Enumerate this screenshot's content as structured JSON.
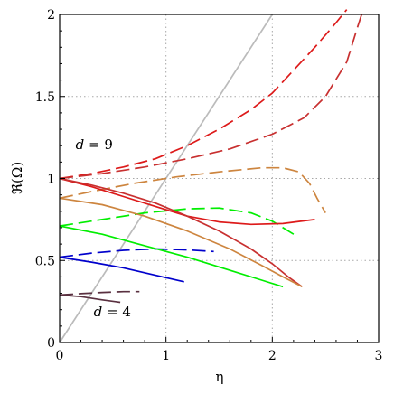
{
  "chart_data": {
    "type": "line",
    "xlabel": "η",
    "ylabel": "ℜ(Ω)",
    "xlim": [
      0,
      3
    ],
    "ylim": [
      0,
      2
    ],
    "x_ticks": [
      0,
      1,
      2,
      3
    ],
    "y_ticks": [
      0,
      0.5,
      1,
      1.5,
      2
    ],
    "x_tick_labels": [
      "0",
      "1",
      "2",
      "3"
    ],
    "y_tick_labels": [
      "0",
      "0.5",
      "1",
      "1.5",
      "2"
    ],
    "grid": true,
    "annotations": [
      {
        "var": "d",
        "text": " = 9",
        "x": 0.15,
        "y": 1.18
      },
      {
        "var": "d",
        "text": " = 4",
        "x": 0.32,
        "y": 0.16
      }
    ],
    "series": [
      {
        "color": "#bbbbbb",
        "dash": "solid",
        "points": [
          [
            0.0,
            0.0
          ],
          [
            2.0,
            2.0
          ]
        ]
      },
      {
        "color": "#dd1a1a",
        "dash": "long",
        "points": [
          [
            0.0,
            1.0
          ],
          [
            0.3,
            1.03
          ],
          [
            0.6,
            1.07
          ],
          [
            0.9,
            1.12
          ],
          [
            1.2,
            1.2
          ],
          [
            1.5,
            1.3
          ],
          [
            1.8,
            1.42
          ],
          [
            2.0,
            1.52
          ],
          [
            2.2,
            1.66
          ],
          [
            2.4,
            1.8
          ],
          [
            2.6,
            1.95
          ],
          [
            2.7,
            2.03
          ]
        ]
      },
      {
        "color": "#c83030",
        "dash": "long",
        "points": [
          [
            0.0,
            1.0
          ],
          [
            0.4,
            1.03
          ],
          [
            0.8,
            1.07
          ],
          [
            1.2,
            1.12
          ],
          [
            1.6,
            1.18
          ],
          [
            2.0,
            1.27
          ],
          [
            2.3,
            1.37
          ],
          [
            2.5,
            1.5
          ],
          [
            2.7,
            1.71
          ],
          [
            2.8,
            1.92
          ],
          [
            2.85,
            2.02
          ]
        ]
      },
      {
        "color": "#cd853f",
        "dash": "long",
        "points": [
          [
            0.0,
            0.88
          ],
          [
            0.3,
            0.92
          ],
          [
            0.7,
            0.97
          ],
          [
            1.1,
            1.01
          ],
          [
            1.5,
            1.04
          ],
          [
            1.9,
            1.065
          ],
          [
            2.1,
            1.065
          ],
          [
            2.25,
            1.04
          ],
          [
            2.35,
            0.97
          ],
          [
            2.42,
            0.88
          ],
          [
            2.5,
            0.79
          ]
        ]
      },
      {
        "color": "#00ee00",
        "dash": "long",
        "points": [
          [
            0.0,
            0.71
          ],
          [
            0.4,
            0.75
          ],
          [
            0.8,
            0.79
          ],
          [
            1.2,
            0.815
          ],
          [
            1.5,
            0.82
          ],
          [
            1.8,
            0.79
          ],
          [
            2.0,
            0.74
          ],
          [
            2.2,
            0.66
          ]
        ]
      },
      {
        "color": "#0000cc",
        "dash": "long",
        "points": [
          [
            0.0,
            0.52
          ],
          [
            0.3,
            0.545
          ],
          [
            0.6,
            0.562
          ],
          [
            0.9,
            0.57
          ],
          [
            1.2,
            0.565
          ],
          [
            1.45,
            0.555
          ]
        ]
      },
      {
        "color": "#5a3040",
        "dash": "long",
        "points": [
          [
            0.0,
            0.29
          ],
          [
            0.2,
            0.298
          ],
          [
            0.4,
            0.305
          ],
          [
            0.6,
            0.31
          ],
          [
            0.75,
            0.31
          ]
        ]
      },
      {
        "color": "#dd1a1a",
        "dash": "solid",
        "points": [
          [
            0.0,
            1.0
          ],
          [
            0.3,
            0.95
          ],
          [
            0.6,
            0.89
          ],
          [
            0.9,
            0.83
          ],
          [
            1.2,
            0.77
          ],
          [
            1.5,
            0.735
          ],
          [
            1.8,
            0.72
          ],
          [
            2.1,
            0.725
          ],
          [
            2.4,
            0.75
          ]
        ]
      },
      {
        "color": "#c83030",
        "dash": "solid",
        "points": [
          [
            0.0,
            1.0
          ],
          [
            0.3,
            0.96
          ],
          [
            0.6,
            0.91
          ],
          [
            0.9,
            0.85
          ],
          [
            1.2,
            0.77
          ],
          [
            1.5,
            0.68
          ],
          [
            1.8,
            0.57
          ],
          [
            2.0,
            0.48
          ],
          [
            2.15,
            0.4
          ],
          [
            2.28,
            0.34
          ]
        ]
      },
      {
        "color": "#cd853f",
        "dash": "solid",
        "points": [
          [
            0.0,
            0.88
          ],
          [
            0.4,
            0.84
          ],
          [
            0.8,
            0.77
          ],
          [
            1.2,
            0.68
          ],
          [
            1.6,
            0.57
          ],
          [
            1.9,
            0.47
          ],
          [
            2.1,
            0.4
          ],
          [
            2.28,
            0.34
          ]
        ]
      },
      {
        "color": "#00ee00",
        "dash": "solid",
        "points": [
          [
            0.0,
            0.71
          ],
          [
            0.4,
            0.66
          ],
          [
            0.8,
            0.59
          ],
          [
            1.2,
            0.52
          ],
          [
            1.6,
            0.44
          ],
          [
            1.9,
            0.38
          ],
          [
            2.1,
            0.34
          ]
        ]
      },
      {
        "color": "#0000cc",
        "dash": "solid",
        "points": [
          [
            0.0,
            0.52
          ],
          [
            0.3,
            0.49
          ],
          [
            0.6,
            0.455
          ],
          [
            0.9,
            0.41
          ],
          [
            1.17,
            0.37
          ]
        ]
      },
      {
        "color": "#5a3040",
        "dash": "solid",
        "points": [
          [
            0.0,
            0.29
          ],
          [
            0.2,
            0.28
          ],
          [
            0.4,
            0.26
          ],
          [
            0.57,
            0.245
          ]
        ]
      }
    ]
  }
}
